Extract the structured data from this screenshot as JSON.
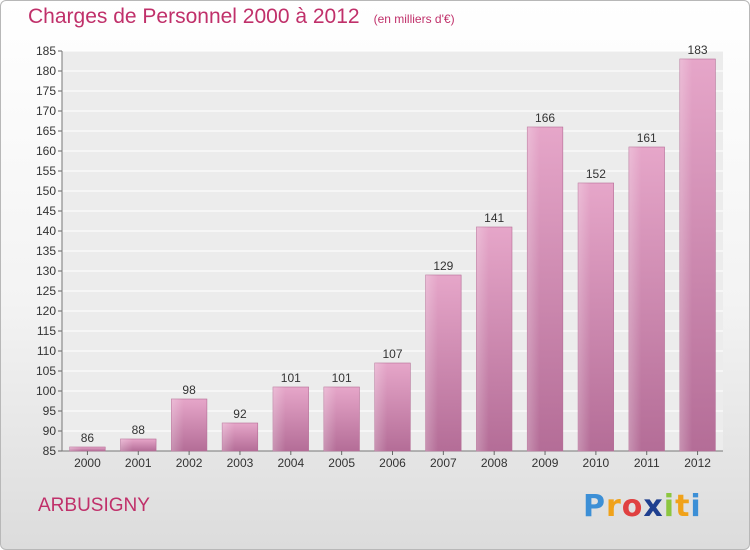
{
  "title": "Charges de Personnel 2000 à 2012",
  "unit": "(en milliers d'€)",
  "commune": "ARBUSIGNY",
  "logo": {
    "letters": [
      {
        "char": "P",
        "color": "#3c8fd6"
      },
      {
        "char": "r",
        "color": "#f0a21a"
      },
      {
        "char": "o",
        "color": "#e04040"
      },
      {
        "char": "x",
        "color": "#1f3f8f"
      },
      {
        "char": "i",
        "color": "#8cc63f"
      },
      {
        "char": "t",
        "color": "#f0a21a"
      },
      {
        "char": "i",
        "color": "#3c8fd6"
      }
    ]
  },
  "chart_data": {
    "type": "bar",
    "title": "Charges de Personnel 2000 à 2012",
    "subtitle": "(en milliers d'€)",
    "categories": [
      "2000",
      "2001",
      "2002",
      "2003",
      "2004",
      "2005",
      "2006",
      "2007",
      "2008",
      "2009",
      "2010",
      "2011",
      "2012"
    ],
    "values": [
      86,
      88,
      98,
      92,
      101,
      101,
      107,
      129,
      141,
      166,
      152,
      161,
      183
    ],
    "ylim": [
      85,
      185
    ],
    "yticks": [
      85,
      90,
      95,
      100,
      105,
      110,
      115,
      120,
      125,
      130,
      135,
      140,
      145,
      150,
      155,
      160,
      165,
      170,
      175,
      180,
      185
    ],
    "grid": true,
    "bar_color": "#d98ab4",
    "xlabel": "",
    "ylabel": ""
  }
}
